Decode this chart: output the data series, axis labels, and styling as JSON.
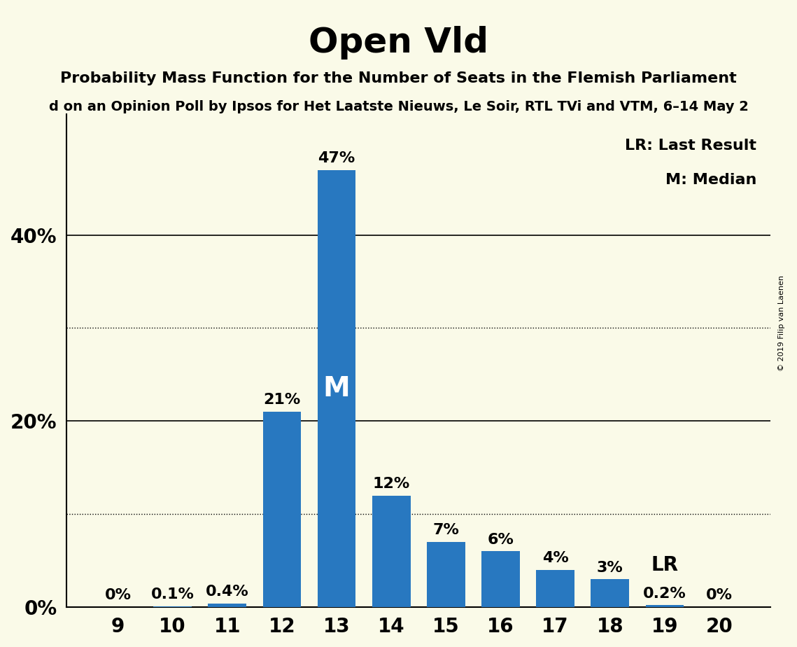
{
  "title": "Open Vld",
  "subtitle": "Probability Mass Function for the Number of Seats in the Flemish Parliament",
  "subtitle2": "d on an Opinion Poll by Ipsos for Het Laatste Nieuws, Le Soir, RTL TVi and VTM, 6–14 May 2",
  "watermark": "© 2019 Filip van Laenen",
  "categories": [
    9,
    10,
    11,
    12,
    13,
    14,
    15,
    16,
    17,
    18,
    19,
    20
  ],
  "values": [
    0.0,
    0.1,
    0.4,
    21.0,
    47.0,
    12.0,
    7.0,
    6.0,
    4.0,
    3.0,
    0.2,
    0.0
  ],
  "labels": [
    "0%",
    "0.1%",
    "0.4%",
    "21%",
    "47%",
    "12%",
    "7%",
    "6%",
    "4%",
    "3%",
    "0.2%",
    "0%"
  ],
  "bar_color": "#2878C0",
  "background_color": "#FAFAE8",
  "median_bar": 13,
  "lr_bar": 19,
  "yticks": [
    0,
    10,
    20,
    30,
    40,
    50
  ],
  "ytick_labels": [
    "0%",
    "",
    "20%",
    "",
    "40%",
    ""
  ],
  "dotted_lines": [
    10,
    30
  ],
  "solid_lines": [
    0,
    20,
    40
  ],
  "ylim": [
    0,
    53
  ],
  "legend_lr": "LR: Last Result",
  "legend_m": "M: Median"
}
